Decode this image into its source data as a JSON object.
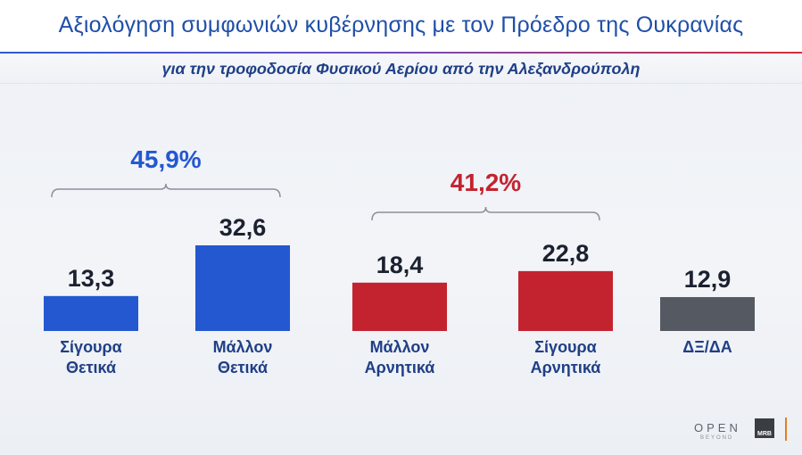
{
  "title": "Αξιολόγηση συμφωνιών κυβέρνησης με τον Πρόεδρο της Ουκρανίας",
  "subtitle": "για την τροφοδοσία Φυσικού Αερίου από την Αλεξανδρούπολη",
  "colors": {
    "positive": "#2358d1",
    "negative": "#c3232f",
    "neutral": "#555a62",
    "title": "#1f4fa8"
  },
  "chart_data": {
    "type": "bar",
    "title": "Αξιολόγηση συμφωνιών κυβέρνησης με τον Πρόεδρο της Ουκρανίας",
    "subtitle": "για την τροφοδοσία Φυσικού Αερίου από την Αλεξανδρούπολη",
    "categories": [
      [
        "Σίγουρα",
        "Θετικά"
      ],
      [
        "Μάλλον",
        "Θετικά"
      ],
      [
        "Μάλλον",
        "Αρνητικά"
      ],
      [
        "Σίγουρα",
        "Αρνητικά"
      ],
      [
        "ΔΞ/ΔΑ"
      ]
    ],
    "values": [
      13.3,
      32.6,
      18.4,
      22.8,
      12.9
    ],
    "value_labels": [
      "13,3",
      "32,6",
      "18,4",
      "22,8",
      "12,9"
    ],
    "bar_colors": [
      "#2358d1",
      "#2358d1",
      "#c3232f",
      "#c3232f",
      "#555a62"
    ],
    "groups": [
      {
        "label": "45,9%",
        "from": 0,
        "to": 1,
        "color": "#2358d1"
      },
      {
        "label": "41,2%",
        "from": 2,
        "to": 3,
        "color": "#c3232f"
      }
    ],
    "grid": false,
    "legend": "none"
  },
  "branding": {
    "channel": "OPEN",
    "channel_sub": "BEYOND",
    "pollster": "MRB"
  }
}
